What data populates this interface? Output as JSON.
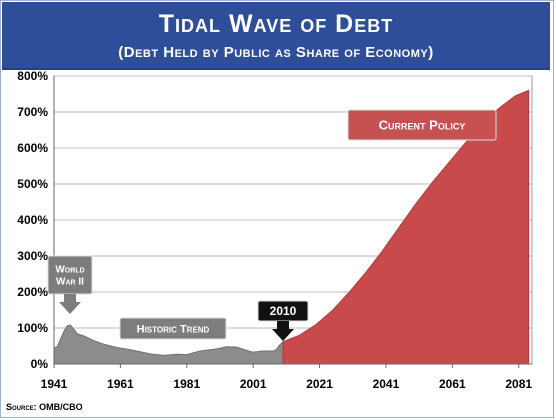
{
  "header": {
    "title": "Tidal Wave of Debt",
    "subtitle": "(Debt Held by Public as Share of Economy)"
  },
  "source": "Source: OMB/CBO",
  "colors": {
    "header_bg": "#2e4e9a",
    "historic_fill": "#8c8c8c",
    "policy_fill": "#c94a4a",
    "policy_label_bg": "#c65151",
    "callout_dark": "#111111",
    "callout_gray": "#7d7d7d",
    "plot_bg": "#ffffff"
  },
  "annotations": {
    "world_war_ii": "World War II",
    "historic_trend": "Historic Trend",
    "year_2010": "2010",
    "current_policy": "Current Policy"
  },
  "chart_data": {
    "type": "area",
    "title": "Tidal Wave of Debt",
    "subtitle": "(Debt Held by Public as Share of Economy)",
    "xlabel": "",
    "ylabel": "",
    "xlim": [
      1941,
      2085
    ],
    "ylim": [
      0,
      800
    ],
    "x_ticks": [
      "1941",
      "1961",
      "1981",
      "2001",
      "2021",
      "2041",
      "2061",
      "2081"
    ],
    "y_ticks": [
      "0%",
      "100%",
      "200%",
      "300%",
      "400%",
      "500%",
      "600%",
      "700%",
      "800%"
    ],
    "grid": "horizontal",
    "series": [
      {
        "name": "Historic Trend",
        "x": [
          1941,
          1942,
          1943,
          1944,
          1945,
          1946,
          1947,
          1948,
          1950,
          1953,
          1956,
          1960,
          1965,
          1970,
          1974,
          1978,
          1981,
          1985,
          1990,
          1993,
          1996,
          2000,
          2001,
          2004,
          2007,
          2008,
          2009,
          2010
        ],
        "values": [
          44,
          48,
          70,
          91,
          106,
          108,
          96,
          84,
          78,
          65,
          55,
          46,
          38,
          28,
          24,
          27,
          26,
          36,
          42,
          48,
          47,
          35,
          33,
          36,
          36,
          40,
          53,
          62
        ]
      },
      {
        "name": "Current Policy",
        "x": [
          2010,
          2015,
          2020,
          2025,
          2030,
          2035,
          2040,
          2045,
          2050,
          2055,
          2060,
          2065,
          2070,
          2075,
          2080,
          2084
        ],
        "values": [
          62,
          80,
          110,
          150,
          200,
          255,
          315,
          380,
          445,
          505,
          560,
          615,
          665,
          710,
          745,
          760
        ]
      }
    ]
  }
}
